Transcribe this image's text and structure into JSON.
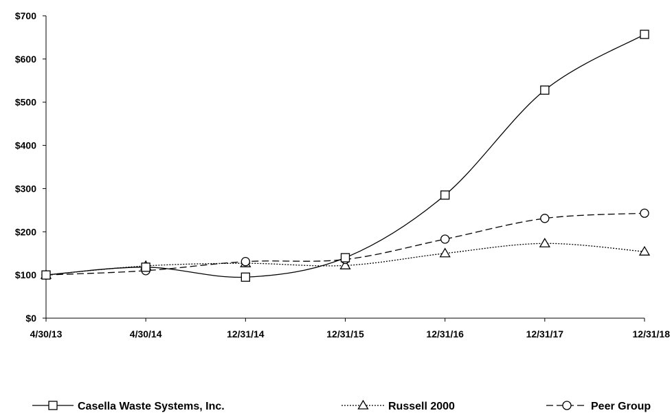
{
  "chart_data": {
    "type": "line",
    "categories": [
      "4/30/13",
      "4/30/14",
      "12/31/14",
      "12/31/15",
      "12/31/16",
      "12/31/17",
      "12/31/18"
    ],
    "ylim": [
      0,
      700
    ],
    "yticks": [
      0,
      100,
      200,
      300,
      400,
      500,
      600,
      700
    ],
    "ytick_labels": [
      "$0",
      "$100",
      "$200",
      "$300",
      "$400",
      "$500",
      "$600",
      "$700"
    ],
    "grid": false,
    "legend_position": "bottom",
    "series": [
      {
        "name": "Casella Waste Systems, Inc.",
        "marker": "square",
        "dash": "solid",
        "values": [
          100,
          118,
          95,
          140,
          285,
          528,
          657
        ]
      },
      {
        "name": "Russell 2000",
        "marker": "triangle",
        "dash": "dotted",
        "values": [
          100,
          121,
          127,
          122,
          150,
          173,
          154
        ]
      },
      {
        "name": "Peer Group",
        "marker": "circle",
        "dash": "dashed",
        "values": [
          100,
          110,
          131,
          136,
          183,
          231,
          243
        ]
      }
    ]
  }
}
